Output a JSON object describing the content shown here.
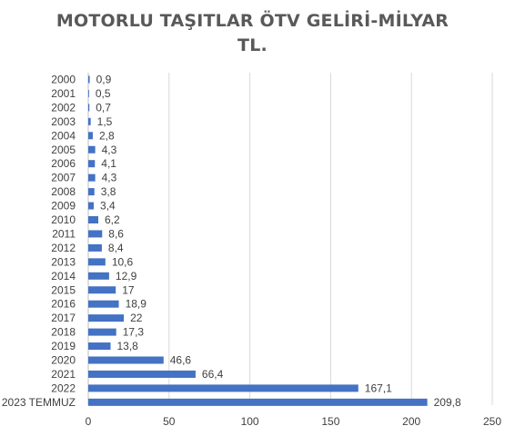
{
  "title_line1": "MOTORLU TAŞITLAR ÖTV GELİRİ-MİLYAR",
  "title_line2": "TL.",
  "chart_data": {
    "type": "bar",
    "orientation": "horizontal",
    "title": "MOTORLU TAŞITLAR ÖTV GELİRİ-MİLYAR TL.",
    "categories": [
      "2000",
      "2001",
      "2002",
      "2003",
      "2004",
      "2005",
      "2006",
      "2007",
      "2008",
      "2009",
      "2010",
      "2011",
      "2012",
      "2013",
      "2014",
      "2015",
      "2016",
      "2017",
      "2018",
      "2019",
      "2020",
      "2021",
      "2022",
      "2023 TEMMUZ"
    ],
    "values": [
      0.9,
      0.5,
      0.7,
      1.5,
      2.8,
      4.3,
      4.1,
      4.3,
      3.8,
      3.4,
      6.2,
      8.6,
      8.4,
      10.6,
      12.9,
      17,
      18.9,
      22,
      17.3,
      13.8,
      46.6,
      66.4,
      167.1,
      209.8
    ],
    "value_labels": [
      "0,9",
      "0,5",
      "0,7",
      "1,5",
      "2,8",
      "4,3",
      "4,1",
      "4,3",
      "3,8",
      "3,4",
      "6,2",
      "8,6",
      "8,4",
      "10,6",
      "12,9",
      "17",
      "18,9",
      "22",
      "17,3",
      "13,8",
      "46,6",
      "66,4",
      "167,1",
      "209,8"
    ],
    "x_ticks": [
      0,
      50,
      100,
      150,
      200,
      250
    ],
    "xlim": [
      0,
      250
    ],
    "xlabel": "",
    "ylabel": "",
    "grid": "vertical",
    "legend": "none",
    "bar_color": "#4472C4"
  }
}
